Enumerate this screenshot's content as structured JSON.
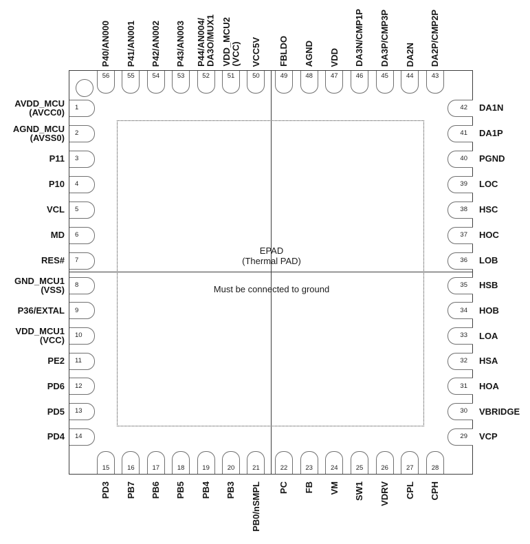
{
  "package": {
    "epad": {
      "line1": "EPAD",
      "line2": "(Thermal PAD)",
      "note": "Must be connected to ground"
    },
    "pins": {
      "top": [
        {
          "num": "56",
          "label": "P40/AN000"
        },
        {
          "num": "55",
          "label": "P41/AN001"
        },
        {
          "num": "54",
          "label": "P42/AN002"
        },
        {
          "num": "53",
          "label": "P43/AN003"
        },
        {
          "num": "52",
          "label": "P44/AN004/\nDA3O/MUX1"
        },
        {
          "num": "51",
          "label": "VDD_MCU2\n(VCC)"
        },
        {
          "num": "50",
          "label": "VCC5V"
        },
        {
          "num": "49",
          "label": "FBLDO"
        },
        {
          "num": "48",
          "label": "AGND"
        },
        {
          "num": "47",
          "label": "VDD"
        },
        {
          "num": "46",
          "label": "DA3N/CMP1P"
        },
        {
          "num": "45",
          "label": "DA3P/CMP3P"
        },
        {
          "num": "44",
          "label": "DA2N"
        },
        {
          "num": "43",
          "label": "DA2P/CMP2P"
        }
      ],
      "left": [
        {
          "num": "1",
          "label": "AVDD_MCU\n(AVCC0)"
        },
        {
          "num": "2",
          "label": "AGND_MCU\n(AVSS0)"
        },
        {
          "num": "3",
          "label": "P11"
        },
        {
          "num": "4",
          "label": "P10"
        },
        {
          "num": "5",
          "label": "VCL"
        },
        {
          "num": "6",
          "label": "MD"
        },
        {
          "num": "7",
          "label": "RES#"
        },
        {
          "num": "8",
          "label": "GND_MCU1\n(VSS)"
        },
        {
          "num": "9",
          "label": "P36/EXTAL"
        },
        {
          "num": "10",
          "label": "VDD_MCU1\n(VCC)"
        },
        {
          "num": "11",
          "label": "PE2"
        },
        {
          "num": "12",
          "label": "PD6"
        },
        {
          "num": "13",
          "label": "PD5"
        },
        {
          "num": "14",
          "label": "PD4"
        }
      ],
      "bottom": [
        {
          "num": "15",
          "label": "PD3"
        },
        {
          "num": "16",
          "label": "PB7"
        },
        {
          "num": "17",
          "label": "PB6"
        },
        {
          "num": "18",
          "label": "PB5"
        },
        {
          "num": "19",
          "label": "PB4"
        },
        {
          "num": "20",
          "label": "PB3"
        },
        {
          "num": "21",
          "label": "PB0/nSMPL"
        },
        {
          "num": "22",
          "label": "PC"
        },
        {
          "num": "23",
          "label": "FB"
        },
        {
          "num": "24",
          "label": "VM"
        },
        {
          "num": "25",
          "label": "SW1"
        },
        {
          "num": "26",
          "label": "VDRV"
        },
        {
          "num": "27",
          "label": "CPL"
        },
        {
          "num": "28",
          "label": "CPH"
        }
      ],
      "right": [
        {
          "num": "42",
          "label": "DA1N"
        },
        {
          "num": "41",
          "label": "DA1P"
        },
        {
          "num": "40",
          "label": "PGND"
        },
        {
          "num": "39",
          "label": "LOC"
        },
        {
          "num": "38",
          "label": "HSC"
        },
        {
          "num": "37",
          "label": "HOC"
        },
        {
          "num": "36",
          "label": "LOB"
        },
        {
          "num": "35",
          "label": "HSB"
        },
        {
          "num": "34",
          "label": "HOB"
        },
        {
          "num": "33",
          "label": "LOA"
        },
        {
          "num": "32",
          "label": "HSA"
        },
        {
          "num": "31",
          "label": "HOA"
        },
        {
          "num": "30",
          "label": "VBRIDGE"
        },
        {
          "num": "29",
          "label": "VCP"
        }
      ]
    },
    "colors": {
      "line": "#3d3d3d",
      "pin_outline": "#6f6f6f",
      "text": "#1b1b1b",
      "background": "#ffffff"
    }
  }
}
